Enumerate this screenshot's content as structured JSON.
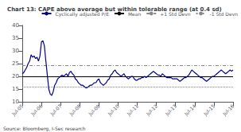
{
  "chart_data": {
    "type": "line",
    "title": "Chart 13: CAPE above average but within tolerable range (at 0.4 sd)",
    "source": "Source: Bloomberg, I-Sec research",
    "categories": [
      "Jul-05",
      null,
      null,
      null,
      null,
      null,
      null,
      null,
      null,
      null,
      null,
      null,
      null,
      "Jul-06",
      null,
      null,
      null,
      null,
      null,
      null,
      null,
      null,
      null,
      null,
      null,
      null,
      "Jul-07",
      null,
      null,
      null,
      null,
      null,
      null,
      null,
      null,
      null,
      null,
      null,
      null,
      "Jul-08",
      null,
      null,
      null,
      null,
      null,
      null,
      null,
      null,
      null,
      null,
      null,
      null,
      "Jul-09",
      null,
      null,
      null,
      null,
      null,
      null,
      null,
      null,
      null,
      null,
      null,
      null,
      "Jul-10",
      null,
      null,
      null,
      null,
      null,
      null,
      null,
      null,
      null,
      null,
      null,
      null,
      "Jul-11",
      null,
      null,
      null,
      null,
      null,
      null,
      null,
      null,
      null,
      null,
      null,
      null,
      "Jul-12",
      null,
      null,
      null,
      null,
      null,
      null,
      null,
      null,
      null,
      null,
      null,
      null,
      "Jul-13",
      null,
      null,
      null,
      null,
      null,
      null,
      null,
      null,
      null,
      null,
      null,
      null,
      "Jul-14",
      null,
      null,
      null,
      null,
      null,
      null,
      null,
      null,
      null,
      null,
      null,
      null,
      "Jul-15",
      null,
      null,
      null,
      null,
      null,
      null,
      null,
      null,
      null,
      null,
      null,
      null,
      "Jul-16"
    ],
    "series": [
      {
        "name": "Cyclically adjusted P/E",
        "type": "line",
        "color": "#00008B",
        "line_style": "solid",
        "values": [
          21.0,
          21.5,
          22.5,
          23.5,
          25.0,
          26.0,
          28.5,
          27.5,
          28.0,
          27.0,
          27.5,
          26.0,
          28.0,
          33.5,
          34.0,
          32.0,
          26.0,
          20.5,
          15.0,
          13.0,
          12.5,
          14.0,
          16.5,
          17.5,
          19.0,
          19.5,
          20.0,
          20.5,
          20.0,
          20.5,
          21.0,
          20.0,
          21.5,
          22.0,
          21.0,
          20.5,
          19.0,
          18.5,
          17.5,
          17.0,
          16.5,
          16.5,
          16.0,
          15.5,
          15.5,
          16.0,
          16.5,
          16.5,
          17.0,
          17.5,
          17.5,
          18.5,
          19.0,
          17.5,
          17.0,
          16.5,
          17.0,
          17.5,
          18.5,
          19.0,
          20.5,
          21.0,
          22.0,
          22.5,
          21.5,
          21.0,
          20.5,
          20.0,
          20.5,
          21.0,
          20.0,
          19.5,
          19.0,
          19.5,
          20.0,
          20.0,
          19.0,
          18.5,
          18.5,
          19.0,
          19.0,
          19.5,
          19.5,
          20.0,
          19.5,
          20.0,
          20.5,
          21.0,
          21.5,
          22.0,
          21.5,
          21.0,
          20.5,
          20.5,
          20.0,
          21.0,
          20.5,
          20.0,
          19.5,
          19.5,
          19.5,
          19.5,
          19.0,
          19.0,
          19.0,
          19.0,
          18.5,
          18.0,
          18.5,
          19.0,
          19.5,
          19.5,
          20.0,
          20.5,
          21.5,
          22.5,
          22.0,
          21.5,
          21.0,
          20.5,
          20.0,
          19.5,
          19.5,
          19.0,
          18.5,
          18.0,
          18.5,
          19.0,
          19.5,
          20.0,
          20.0,
          20.5,
          21.0,
          21.5,
          22.0,
          22.5,
          22.0,
          21.5,
          21.0,
          21.5,
          22.0,
          22.5,
          22.0,
          22.5
        ]
      },
      {
        "name": "Mean",
        "type": "hline",
        "value": 20.0,
        "color": "#000000",
        "line_style": "solid"
      },
      {
        "name": "+1 Std Devn",
        "type": "hline",
        "value": 24.3,
        "color": "#888888",
        "line_style": "dashdot"
      },
      {
        "name": "-1 Std Devn",
        "type": "hline",
        "value": 16.0,
        "color": "#888888",
        "line_style": "dotted"
      }
    ],
    "ylim": [
      10,
      40
    ],
    "yticks": [
      10,
      15,
      20,
      25,
      30,
      35,
      40
    ],
    "grid": false,
    "legend": "upper right"
  }
}
